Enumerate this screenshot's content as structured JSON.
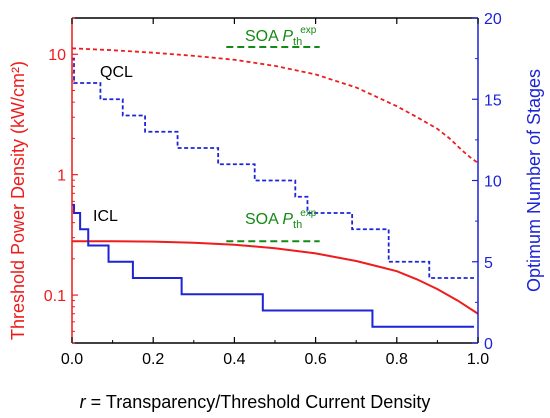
{
  "chart_data": {
    "type": "line",
    "xlabel_var": "r",
    "xlabel_rest": " = Transparency/Threshold Current Density",
    "ylabel_left": "Threshold Power Density (kW/cm²)",
    "ylabel_right": "Optimum Number of Stages",
    "xlim": [
      0,
      1
    ],
    "ylim_left": [
      0.04,
      20
    ],
    "ylim_left_scale": "log",
    "ylim_right": [
      0,
      20
    ],
    "x_ticks": [
      "0.0",
      "0.2",
      "0.4",
      "0.6",
      "0.8",
      "1.0"
    ],
    "y_left_ticks": [
      "0.1",
      "1",
      "10"
    ],
    "y_right_ticks": [
      "0",
      "5",
      "10",
      "15",
      "20"
    ],
    "colors": {
      "left": "#ee1c1c",
      "right": "#1c24d6",
      "annot": "#138a13",
      "axis": "#000000"
    },
    "annotations": [
      {
        "label": "QCL",
        "color": "#000000"
      },
      {
        "label": "ICL",
        "color": "#000000"
      },
      {
        "label_main": "SOA P",
        "label_sub": "th",
        "label_sup": "exp",
        "color": "#138a13",
        "x_range": [
          0.38,
          0.61
        ],
        "y": 11.5
      },
      {
        "label_main": "SOA P",
        "label_sub": "th",
        "label_sup": "exp",
        "color": "#138a13",
        "x_range": [
          0.38,
          0.61
        ],
        "y": 0.28
      }
    ],
    "series": [
      {
        "style": "dashed",
        "axis": "left",
        "color": "#ee1c1c",
        "x": [
          0,
          0.05,
          0.1,
          0.2,
          0.3,
          0.4,
          0.5,
          0.6,
          0.7,
          0.8,
          0.85,
          0.9,
          0.93,
          0.96,
          0.98,
          1.0
        ],
        "y": [
          11.2,
          11.0,
          10.8,
          10.3,
          9.7,
          9.0,
          8.0,
          6.8,
          5.3,
          3.7,
          3.0,
          2.4,
          2.0,
          1.6,
          1.4,
          1.25
        ]
      },
      {
        "style": "solid",
        "axis": "left",
        "color": "#ee1c1c",
        "x": [
          0,
          0.1,
          0.2,
          0.3,
          0.4,
          0.5,
          0.6,
          0.7,
          0.8,
          0.85,
          0.9,
          0.95,
          1.0
        ],
        "y": [
          0.28,
          0.28,
          0.278,
          0.272,
          0.262,
          0.245,
          0.222,
          0.192,
          0.158,
          0.135,
          0.112,
          0.09,
          0.07
        ]
      },
      {
        "style": "dashed-step",
        "axis": "right",
        "color": "#1c24d6",
        "x": [
          0,
          0.005,
          0.005,
          0.02,
          0.02,
          0.07,
          0.07,
          0.125,
          0.125,
          0.18,
          0.18,
          0.26,
          0.26,
          0.36,
          0.36,
          0.45,
          0.45,
          0.55,
          0.55,
          0.58,
          0.58,
          0.69,
          0.69,
          0.78,
          0.78,
          0.88,
          0.88,
          0.99
        ],
        "y": [
          17.5,
          17.5,
          16,
          16,
          16,
          16,
          15,
          15,
          14,
          14,
          13,
          13,
          12,
          12,
          11,
          11,
          10,
          10,
          9,
          9,
          8,
          8,
          7,
          7,
          5,
          5,
          4,
          4
        ]
      },
      {
        "style": "solid-step",
        "axis": "right",
        "color": "#1c24d6",
        "x": [
          0,
          0.005,
          0.005,
          0.02,
          0.02,
          0.04,
          0.04,
          0.09,
          0.09,
          0.15,
          0.15,
          0.27,
          0.27,
          0.47,
          0.47,
          0.74,
          0.74,
          0.99
        ],
        "y": [
          8.5,
          8.5,
          8,
          8,
          7,
          7,
          6,
          6,
          5,
          5,
          4,
          4,
          3,
          3,
          2,
          2,
          1,
          1
        ]
      }
    ]
  }
}
